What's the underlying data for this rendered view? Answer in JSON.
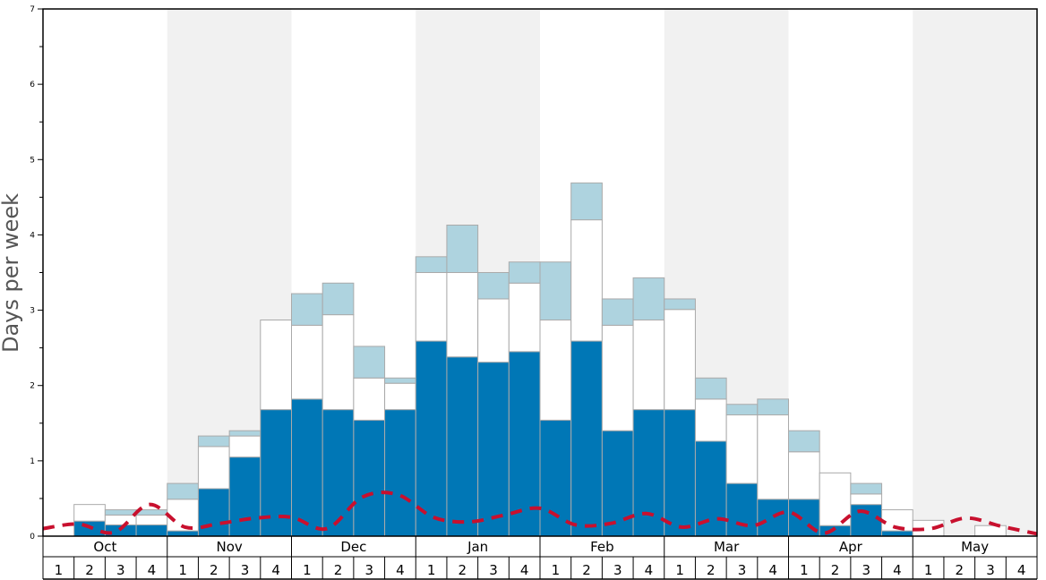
{
  "chart_data": {
    "type": "bar",
    "stacked": true,
    "ylabel": "Days per week",
    "ylim": [
      0,
      7
    ],
    "yticks": [
      0,
      1,
      2,
      3,
      4,
      5,
      6,
      7
    ],
    "months": [
      "Oct",
      "Nov",
      "Dec",
      "Jan",
      "Feb",
      "Mar",
      "Apr",
      "May"
    ],
    "weeks": [
      "1",
      "2",
      "3",
      "4"
    ],
    "shaded_months": [
      "Nov",
      "Jan",
      "Mar",
      "May"
    ],
    "colors": {
      "bottom": "#0077b6",
      "middle": "#ffffff",
      "top": "#aed3df",
      "bar_edge": "#aaaaaa",
      "dashed_line": "#c8102e",
      "shade": "#f1f1f1"
    },
    "series": [
      {
        "values": [
          0,
          0.2,
          0.15,
          0.15,
          0.07,
          0.63,
          1.05,
          1.68,
          1.82,
          1.68,
          1.54,
          1.68,
          2.59,
          2.38,
          2.31,
          2.45,
          1.54,
          2.59,
          1.4,
          1.68,
          1.68,
          1.26,
          0.7,
          0.49,
          0.49,
          0.14,
          0.42,
          0.07,
          0,
          0,
          0,
          0
        ]
      },
      {
        "values": [
          0,
          0.22,
          0.13,
          0.13,
          0.42,
          0.56,
          0.28,
          1.19,
          0.98,
          1.26,
          0.56,
          0.35,
          0.91,
          1.12,
          0.84,
          0.91,
          1.33,
          1.61,
          1.4,
          1.19,
          1.33,
          0.56,
          0.91,
          1.12,
          0.63,
          0.7,
          0.14,
          0.28,
          0.21,
          0,
          0.14,
          0
        ]
      },
      {
        "values": [
          0,
          0,
          0.07,
          0.07,
          0.21,
          0.14,
          0.07,
          0,
          0.42,
          0.42,
          0.42,
          0.07,
          0.21,
          0.63,
          0.35,
          0.28,
          0.77,
          0.49,
          0.35,
          0.56,
          0.14,
          0.28,
          0.14,
          0.21,
          0.28,
          0,
          0.14,
          0,
          0,
          0,
          0,
          0
        ]
      },
      {
        "type": "line",
        "style": "dashed",
        "values": [
          0.1,
          0.16,
          0.05,
          0.42,
          0.12,
          0.17,
          0.24,
          0.25,
          0.1,
          0.52,
          0.55,
          0.25,
          0.19,
          0.28,
          0.37,
          0.15,
          0.17,
          0.3,
          0.12,
          0.23,
          0.14,
          0.32,
          0.04,
          0.33,
          0.12,
          0.1,
          0.24,
          0.13,
          0.03
        ]
      }
    ]
  }
}
